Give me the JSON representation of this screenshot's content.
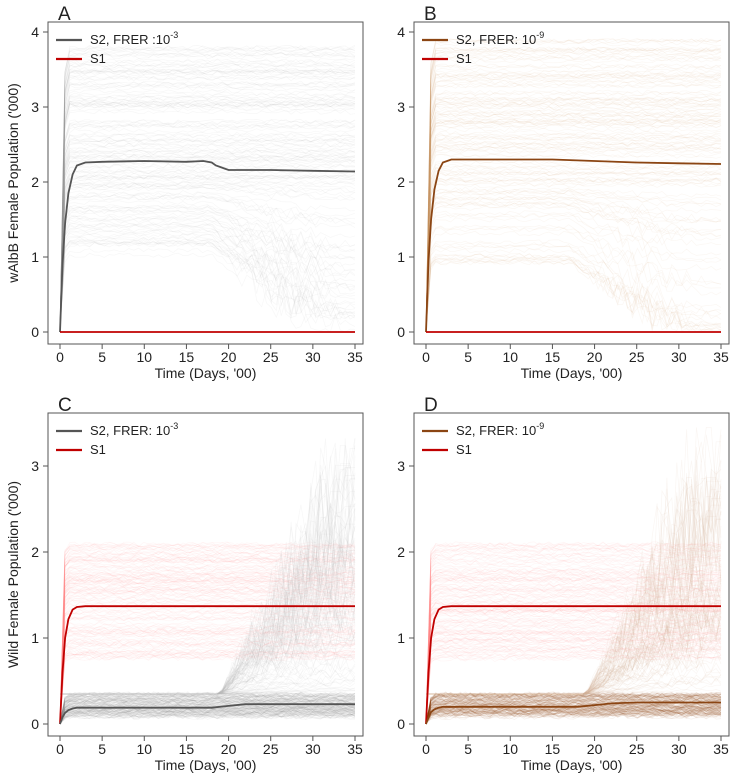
{
  "chart_data": [
    {
      "type": "line",
      "panel": "A",
      "xlabel": "Time (Days, '00)",
      "ylabel": "wAlbB Female Population ('000)",
      "xlim": [
        0,
        35
      ],
      "ylim": [
        0,
        4
      ],
      "xticks": [
        0,
        5,
        10,
        15,
        20,
        25,
        30,
        35
      ],
      "yticks": [
        0,
        1,
        2,
        3,
        4
      ],
      "tick_labels_x": [
        "0",
        "5",
        "10",
        "15",
        "20",
        "25",
        "30",
        "35"
      ],
      "tick_labels_y": [
        "0",
        "1",
        "2",
        "3",
        "4"
      ],
      "legend": {
        "placement": "top-left",
        "entries": [
          {
            "name": "S2, FRER :10",
            "sup": "-3",
            "color": "#555555"
          },
          {
            "name": "S1",
            "sup": "",
            "color": "#c00000"
          }
        ]
      },
      "bands": [
        {
          "color": "#9a9a9a",
          "lo_start": 1.0,
          "hi_start": 3.8,
          "lo_end": 0.0,
          "hi_end": 3.7,
          "rise": 1.0,
          "decline_from": 18
        }
      ],
      "series": [
        {
          "name": "S2, FRER :10^-3",
          "color": "#555555",
          "x": [
            0,
            0.3,
            0.6,
            1,
            1.5,
            2,
            3,
            5,
            10,
            15,
            17,
            18,
            18.5,
            19.5,
            20,
            25,
            30,
            35
          ],
          "y": [
            0,
            0.9,
            1.45,
            1.85,
            2.1,
            2.22,
            2.26,
            2.27,
            2.28,
            2.27,
            2.28,
            2.26,
            2.22,
            2.18,
            2.16,
            2.16,
            2.15,
            2.14
          ]
        },
        {
          "name": "S1",
          "color": "#c00000",
          "x": [
            0,
            35
          ],
          "y": [
            0,
            0
          ]
        }
      ]
    },
    {
      "type": "line",
      "panel": "B",
      "xlabel": "Time (Days, '00)",
      "ylabel": "",
      "xlim": [
        0,
        35
      ],
      "ylim": [
        0,
        4
      ],
      "xticks": [
        0,
        5,
        10,
        15,
        20,
        25,
        30,
        35
      ],
      "yticks": [
        0,
        1,
        2,
        3,
        4
      ],
      "tick_labels_x": [
        "0",
        "5",
        "10",
        "15",
        "20",
        "25",
        "30",
        "35"
      ],
      "tick_labels_y": [
        "0",
        "1",
        "2",
        "3",
        "4"
      ],
      "legend": {
        "placement": "top-left",
        "entries": [
          {
            "name": "S2, FRER: 10",
            "sup": "-9",
            "color": "#8B4513"
          },
          {
            "name": "S1",
            "sup": "",
            "color": "#c00000"
          }
        ]
      },
      "bands": [
        {
          "color": "#c8956a",
          "lo_start": 0.9,
          "hi_start": 3.9,
          "lo_end": 0.0,
          "hi_end": 3.7,
          "rise": 1.0,
          "decline_from": 17
        }
      ],
      "series": [
        {
          "name": "S2, FRER: 10^-9",
          "color": "#8B4513",
          "x": [
            0,
            0.3,
            0.6,
            1,
            1.5,
            2,
            3,
            5,
            10,
            15,
            20,
            25,
            30,
            35
          ],
          "y": [
            0,
            0.95,
            1.5,
            1.9,
            2.15,
            2.26,
            2.3,
            2.3,
            2.3,
            2.3,
            2.28,
            2.26,
            2.25,
            2.24
          ]
        },
        {
          "name": "S1",
          "color": "#c00000",
          "x": [
            0,
            35
          ],
          "y": [
            0,
            0
          ]
        }
      ]
    },
    {
      "type": "line",
      "panel": "C",
      "xlabel": "Time (Days, '00)",
      "ylabel": "Wild Female Population ('000)",
      "xlim": [
        0,
        35
      ],
      "ylim": [
        0,
        3.5
      ],
      "xticks": [
        0,
        5,
        10,
        15,
        20,
        25,
        30,
        35
      ],
      "yticks": [
        0,
        1,
        2,
        3
      ],
      "tick_labels_x": [
        "0",
        "5",
        "10",
        "15",
        "20",
        "25",
        "30",
        "35"
      ],
      "tick_labels_y": [
        "0",
        "1",
        "2",
        "3"
      ],
      "legend": {
        "placement": "top-left",
        "entries": [
          {
            "name": "S2, FRER: 10",
            "sup": "-3",
            "color": "#555555"
          },
          {
            "name": "S1",
            "sup": "",
            "color": "#c00000"
          }
        ]
      },
      "bands": [
        {
          "color": "#ff8a8a",
          "lo_start": 0.75,
          "hi_start": 2.1,
          "lo_end": 0.75,
          "hi_end": 2.1,
          "rise": 0.8,
          "decline_from": null
        },
        {
          "color": "#8a8a8a",
          "lo_start": 0.08,
          "hi_start": 0.35,
          "lo_end": 0.08,
          "hi_end": 0.4,
          "rise": 1.2,
          "decline_from": null
        },
        {
          "color": "#bbbbbb",
          "lo_start": 0.35,
          "hi_start": 0.35,
          "lo_end": 0.35,
          "hi_end": 3.45,
          "rise": 1.0,
          "decline_from": null,
          "grow_from": 19
        }
      ],
      "series": [
        {
          "name": "S1",
          "color": "#c00000",
          "x": [
            0,
            0.3,
            0.6,
            1,
            1.5,
            2,
            3,
            5,
            10,
            15,
            20,
            25,
            30,
            35
          ],
          "y": [
            0,
            0.6,
            1.0,
            1.22,
            1.33,
            1.36,
            1.37,
            1.37,
            1.37,
            1.37,
            1.37,
            1.37,
            1.37,
            1.37
          ]
        },
        {
          "name": "S2, FRER: 10^-3",
          "color": "#555555",
          "x": [
            0,
            0.3,
            0.6,
            1,
            1.5,
            2,
            5,
            10,
            15,
            18,
            20,
            22,
            25,
            30,
            35
          ],
          "y": [
            0,
            0.08,
            0.13,
            0.16,
            0.18,
            0.19,
            0.19,
            0.19,
            0.19,
            0.19,
            0.21,
            0.23,
            0.23,
            0.23,
            0.23
          ]
        }
      ]
    },
    {
      "type": "line",
      "panel": "D",
      "xlabel": "Time (Days, '00)",
      "ylabel": "",
      "xlim": [
        0,
        35
      ],
      "ylim": [
        0,
        3.5
      ],
      "xticks": [
        0,
        5,
        10,
        15,
        20,
        25,
        30,
        35
      ],
      "yticks": [
        0,
        1,
        2,
        3
      ],
      "tick_labels_x": [
        "0",
        "5",
        "10",
        "15",
        "20",
        "25",
        "30",
        "35"
      ],
      "tick_labels_y": [
        "0",
        "1",
        "2",
        "3"
      ],
      "legend": {
        "placement": "top-left",
        "entries": [
          {
            "name": "S2, FRER: 10",
            "sup": "-9",
            "color": "#8B4513"
          },
          {
            "name": "S1",
            "sup": "",
            "color": "#c00000"
          }
        ]
      },
      "bands": [
        {
          "color": "#ff8a8a",
          "lo_start": 0.75,
          "hi_start": 2.1,
          "lo_end": 0.75,
          "hi_end": 2.1,
          "rise": 0.8,
          "decline_from": null
        },
        {
          "color": "#8B4513",
          "lo_start": 0.08,
          "hi_start": 0.35,
          "lo_end": 0.08,
          "hi_end": 0.4,
          "rise": 1.2,
          "decline_from": null
        },
        {
          "color": "#d2b59a",
          "lo_start": 0.35,
          "hi_start": 0.35,
          "lo_end": 0.35,
          "hi_end": 3.5,
          "rise": 1.0,
          "decline_from": null,
          "grow_from": 19
        }
      ],
      "series": [
        {
          "name": "S1",
          "color": "#c00000",
          "x": [
            0,
            0.3,
            0.6,
            1,
            1.5,
            2,
            3,
            5,
            10,
            15,
            20,
            25,
            30,
            35
          ],
          "y": [
            0,
            0.6,
            1.0,
            1.22,
            1.33,
            1.36,
            1.37,
            1.37,
            1.37,
            1.37,
            1.37,
            1.37,
            1.37,
            1.37
          ]
        },
        {
          "name": "S2, FRER: 10^-9",
          "color": "#8B4513",
          "x": [
            0,
            0.3,
            0.6,
            1,
            1.5,
            2,
            5,
            10,
            15,
            18,
            20,
            22,
            25,
            30,
            35
          ],
          "y": [
            0,
            0.08,
            0.14,
            0.17,
            0.19,
            0.2,
            0.2,
            0.2,
            0.2,
            0.2,
            0.22,
            0.24,
            0.25,
            0.25,
            0.25
          ]
        }
      ]
    }
  ]
}
